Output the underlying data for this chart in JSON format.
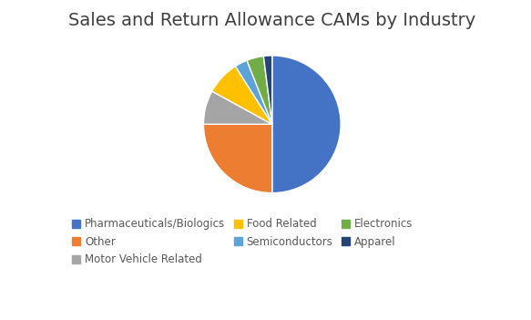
{
  "title": "Sales and Return Allowance CAMs by Industry",
  "labels": [
    "Pharmaceuticals/Biologics",
    "Other",
    "Motor Vehicle Related",
    "Food Related",
    "Semiconductors",
    "Electronics",
    "Apparel"
  ],
  "values": [
    50,
    25,
    8,
    8,
    3,
    4,
    2
  ],
  "colors": [
    "#4472C4",
    "#ED7D31",
    "#A5A5A5",
    "#FFC000",
    "#5BA3D9",
    "#70AD47",
    "#264478"
  ],
  "title_fontsize": 14,
  "legend_fontsize": 8.5,
  "startangle": 90,
  "counterclock": false,
  "background_color": "#ffffff",
  "title_color": "#404040",
  "legend_text_color": "#595959"
}
